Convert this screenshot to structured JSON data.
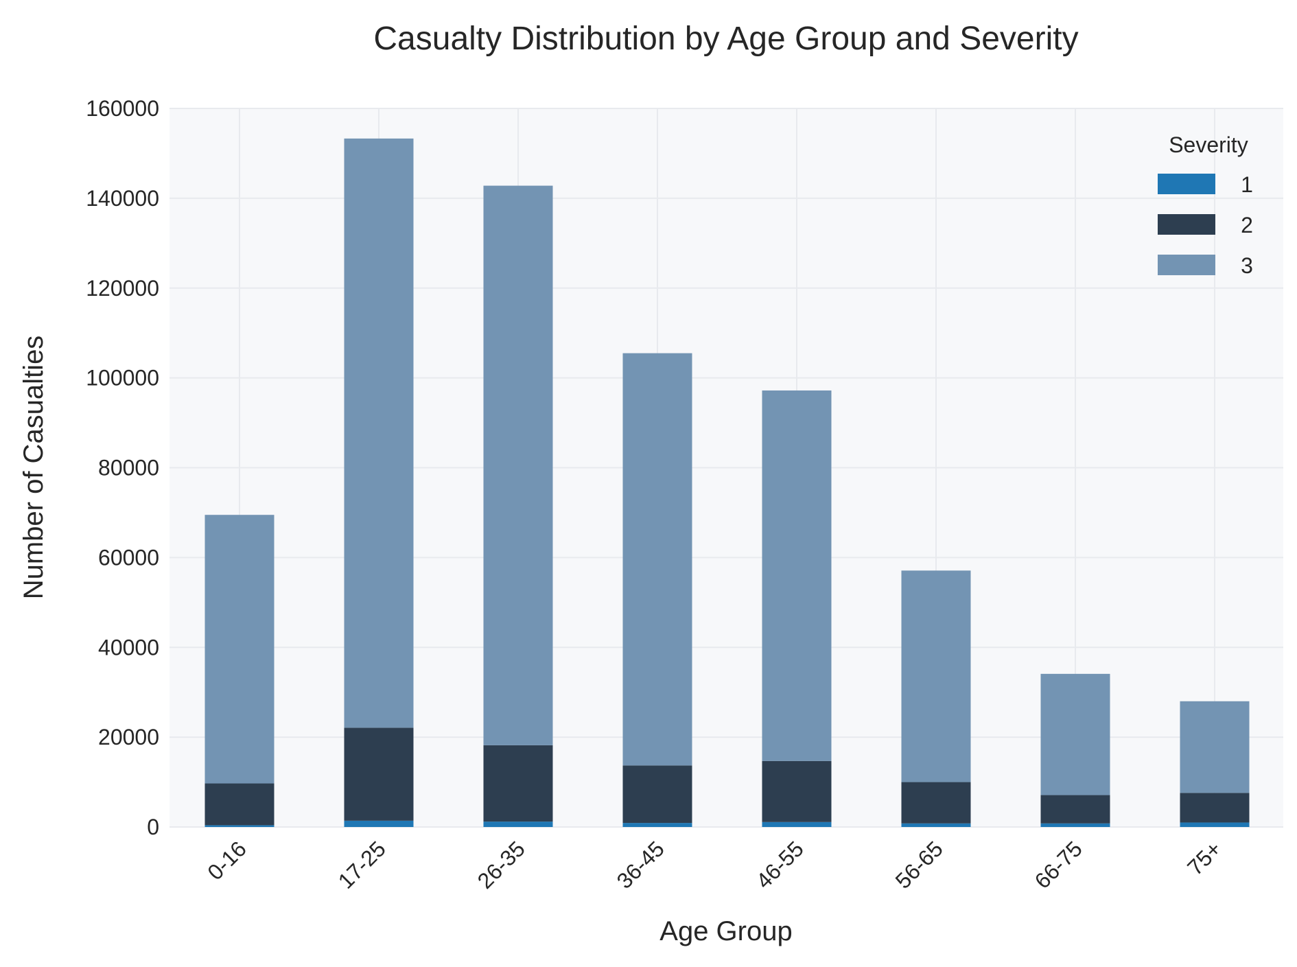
{
  "chart_data": {
    "type": "bar",
    "stacked": true,
    "title": "Casualty Distribution by Age Group and Severity",
    "xlabel": "Age Group",
    "ylabel": "Number of Casualties",
    "categories": [
      "0-16",
      "17-25",
      "26-35",
      "36-45",
      "46-55",
      "56-65",
      "66-75",
      "75+"
    ],
    "series": [
      {
        "name": "1",
        "color": "#1f77b4",
        "values": [
          400,
          1400,
          1200,
          900,
          1100,
          800,
          800,
          1000
        ]
      },
      {
        "name": "2",
        "color": "#2d3e50",
        "values": [
          9300,
          20700,
          17000,
          12800,
          13600,
          9200,
          6300,
          6600
        ]
      },
      {
        "name": "3",
        "color": "#7394b3",
        "values": [
          59800,
          131200,
          124600,
          91800,
          82500,
          47100,
          27000,
          20400
        ]
      }
    ],
    "ylim": [
      0,
      160000
    ],
    "yticks": [
      "0",
      "20000",
      "40000",
      "60000",
      "80000",
      "100000",
      "120000",
      "140000",
      "160000"
    ],
    "legend": {
      "title": "Severity",
      "position": "top-right"
    },
    "grid": true,
    "plot_background": "#f7f8fa",
    "grid_color": "#e8eaee"
  }
}
